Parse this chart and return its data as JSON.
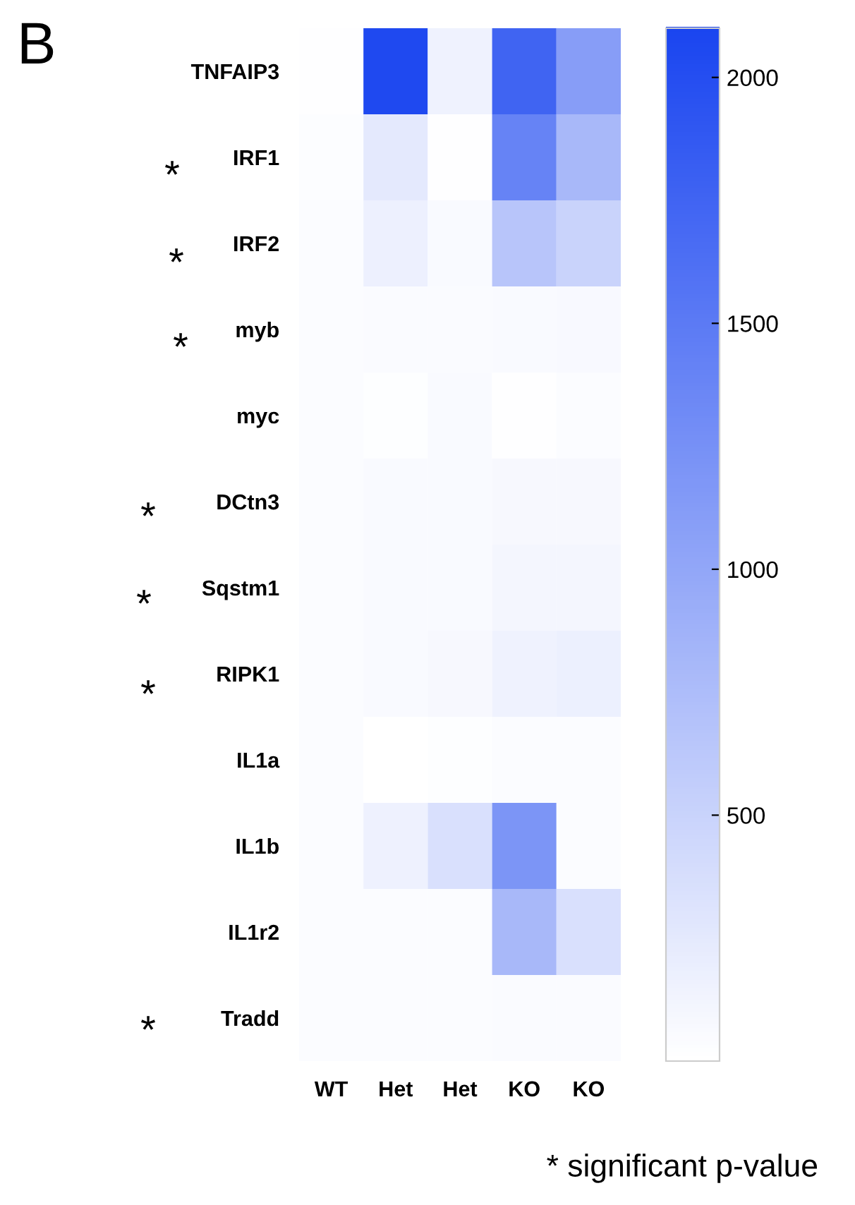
{
  "chart_data": {
    "type": "heatmap",
    "title": "B",
    "categories": [
      "WT",
      "Het",
      "Het",
      "KO",
      "KO"
    ],
    "y_categories": [
      "TNFAIP3",
      "IRF1",
      "IRF2",
      "myb",
      "myc",
      "DCtn3",
      "Sqstm1",
      "RIPK1",
      "IL1a",
      "IL1b",
      "IL1r2",
      "Tradd"
    ],
    "cells": [
      [
        10,
        2050,
        150,
        1750,
        1100
      ],
      [
        30,
        250,
        10,
        1400,
        800
      ],
      [
        40,
        170,
        60,
        650,
        500
      ],
      [
        40,
        50,
        50,
        60,
        70
      ],
      [
        40,
        20,
        60,
        10,
        40
      ],
      [
        40,
        60,
        60,
        80,
        80
      ],
      [
        40,
        60,
        60,
        100,
        100
      ],
      [
        40,
        60,
        80,
        150,
        180
      ],
      [
        40,
        0,
        20,
        40,
        40
      ],
      [
        40,
        160,
        350,
        1200,
        40
      ],
      [
        40,
        40,
        40,
        800,
        350
      ],
      [
        40,
        40,
        40,
        50,
        50
      ]
    ],
    "colors": [
      "#ffffff",
      "#1a45f0"
    ],
    "clim": [
      0,
      2100
    ],
    "cticks": [
      500,
      1000,
      1500,
      2000
    ],
    "annotations": [
      "*",
      "*",
      "*",
      "*",
      "*",
      "*",
      "*",
      "* significant p-value"
    ]
  }
}
